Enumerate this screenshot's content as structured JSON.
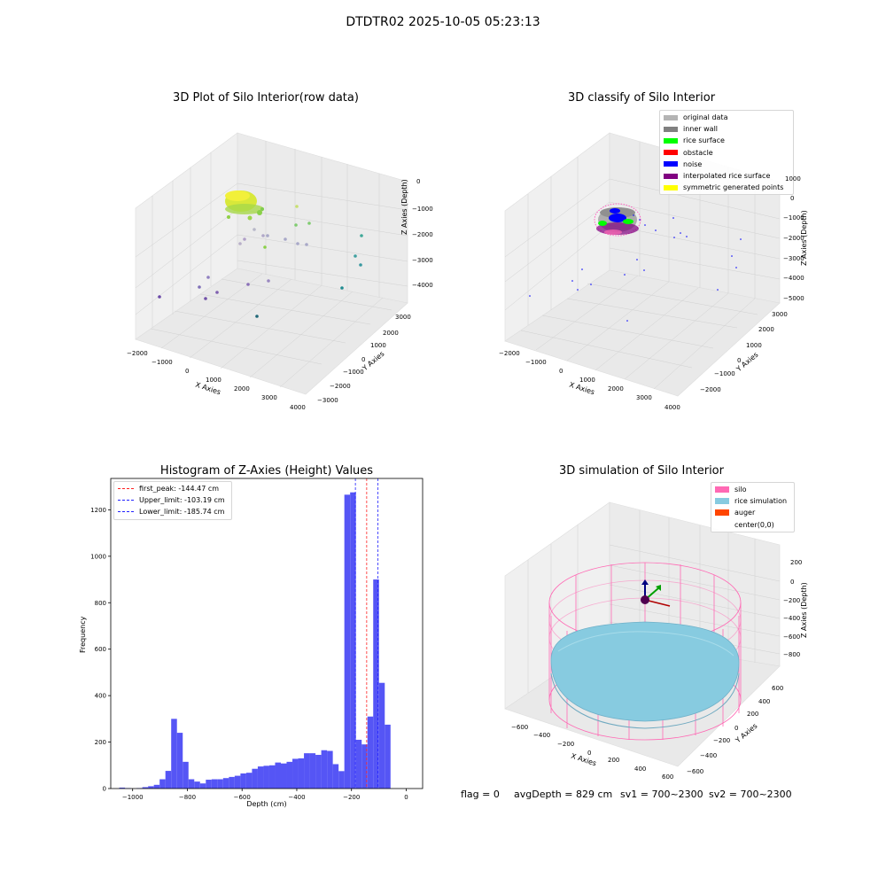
{
  "suptitle": "DTDTR02 2025-10-05 05:23:13",
  "colors": {
    "hist_bar": "#5050f5",
    "first_peak": "#ff2020",
    "limit": "#2020ff",
    "silo": "#ff69b4",
    "rice": "#87cbe0",
    "auger": "#ff4500"
  },
  "plot1": {
    "title": "3D Plot of Silo Interior(row data)",
    "xlabel": "X Axies",
    "ylabel": "Y Axies",
    "zlabel": "Z Axies (Depth)",
    "x_ticks": [
      "−2000",
      "−1000",
      "0",
      "1000",
      "2000",
      "3000",
      "4000"
    ],
    "y_ticks": [
      "−3000",
      "−2000",
      "−1000",
      "0",
      "1000",
      "2000",
      "3000"
    ],
    "z_ticks": [
      "0",
      "−1000",
      "−2000",
      "−3000",
      "−4000"
    ]
  },
  "plot2": {
    "title": "3D classify of Silo Interior",
    "xlabel": "X Axies",
    "ylabel": "Y Axies",
    "zlabel": "Z Axies (Depth)",
    "x_ticks": [
      "−2000",
      "−1000",
      "0",
      "1000",
      "2000",
      "3000",
      "4000"
    ],
    "y_ticks": [
      "−2000",
      "−1000",
      "0",
      "1000",
      "2000",
      "3000"
    ],
    "z_ticks": [
      "1000",
      "0",
      "−1000",
      "−2000",
      "−3000",
      "−4000",
      "−5000"
    ],
    "legend": [
      {
        "label": "original data",
        "color": "#b4b4b4"
      },
      {
        "label": "inner wall",
        "color": "#808080"
      },
      {
        "label": "rice surface",
        "color": "#00ff00"
      },
      {
        "label": "obstacle",
        "color": "#ff0000"
      },
      {
        "label": "noise",
        "color": "#0000ff"
      },
      {
        "label": "interpolated rice surface",
        "color": "#800080"
      },
      {
        "label": "symmetric generated points",
        "color": "#ffff00"
      }
    ]
  },
  "chart_data": {
    "type": "bar",
    "title": "Histogram of Z-Axies (Height) Values",
    "xlabel": "Depth (cm)",
    "ylabel": "Frequency",
    "xlim": [
      -1080,
      60
    ],
    "ylim": [
      0,
      1335
    ],
    "x_ticks": [
      -1000,
      -800,
      -600,
      -400,
      -200,
      0
    ],
    "x_tick_labels": [
      "−1000",
      "−800",
      "−600",
      "−400",
      "−200",
      "0"
    ],
    "y_ticks": [
      0,
      200,
      400,
      600,
      800,
      1000,
      1200
    ],
    "y_tick_labels": [
      "0",
      "200",
      "400",
      "600",
      "800",
      "1000",
      "1200"
    ],
    "bin_start": -1049,
    "bin_width": 21.1,
    "values": [
      4,
      2,
      0,
      2,
      6,
      10,
      16,
      40,
      76,
      300,
      240,
      115,
      40,
      30,
      22,
      38,
      40,
      40,
      45,
      50,
      55,
      65,
      68,
      85,
      95,
      98,
      100,
      112,
      108,
      115,
      128,
      130,
      152,
      152,
      145,
      165,
      162,
      105,
      75,
      1265,
      1275,
      210,
      190,
      310,
      900,
      455,
      275
    ],
    "lines": [
      {
        "label": "first_peak: -144.47 cm",
        "x": -144.47,
        "color": "#ff2020"
      },
      {
        "label": "Upper_limit: -103.19 cm",
        "x": -103.19,
        "color": "#2020ff"
      },
      {
        "label": "Lower_limit: -185.74 cm",
        "x": -185.74,
        "color": "#2020ff"
      }
    ],
    "grid": false,
    "legend_position": "top-left"
  },
  "plot4": {
    "title": "3D simulation of Silo Interior",
    "xlabel": "X Axies",
    "ylabel": "Y Axies",
    "zlabel": "Z Axies (Depth)",
    "x_ticks": [
      "−600",
      "−400",
      "−200",
      "0",
      "200",
      "400",
      "600"
    ],
    "y_ticks": [
      "−600",
      "−400",
      "−200",
      "0",
      "200",
      "400",
      "600"
    ],
    "z_ticks": [
      "200",
      "0",
      "−200",
      "−400",
      "−600",
      "−800"
    ],
    "legend": [
      {
        "label": "silo",
        "color": "#ff69b4"
      },
      {
        "label": "rice simulation",
        "color": "#87cbe0"
      },
      {
        "label": "auger",
        "color": "#ff4500"
      },
      {
        "label": "center(0,0)",
        "color": ""
      }
    ]
  },
  "footer": {
    "flag": "flag = 0",
    "avg_depth": "avgDepth = 829 cm",
    "sv1": "sv1 = 700~2300",
    "sv2": "sv2 = 700~2300"
  }
}
